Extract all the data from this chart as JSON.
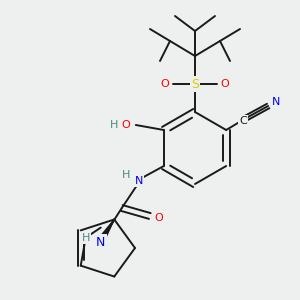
{
  "bg_color": "#eef0f0",
  "bond_color": "#1a1a1a",
  "colors": {
    "O": "#ff0000",
    "N": "#0000ee",
    "S": "#ddcc00",
    "H": "#4a8888",
    "C": "#1a1a1a"
  },
  "lw": 1.4
}
